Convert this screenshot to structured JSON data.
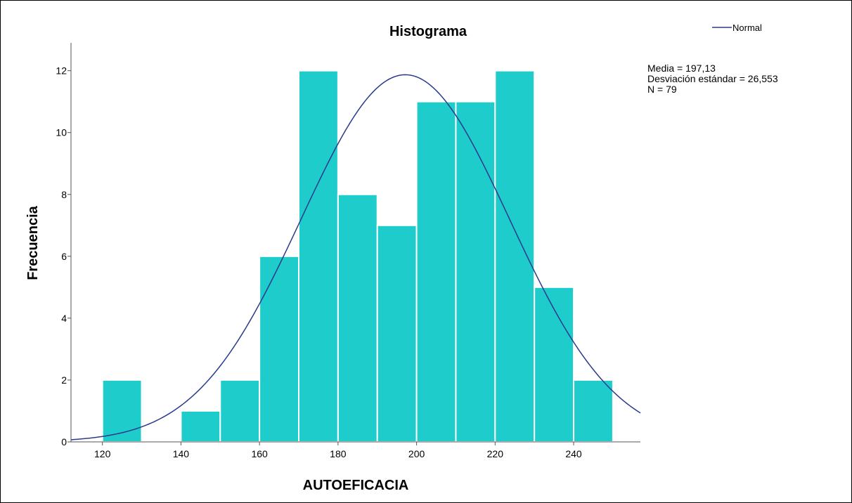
{
  "chart_data": {
    "type": "bar",
    "title": "Histograma",
    "xlabel": "AUTOEFICACIA",
    "ylabel": "Frecuencia",
    "xlim": [
      112,
      257
    ],
    "ylim": [
      0,
      12.9
    ],
    "x_ticks": [
      120,
      140,
      160,
      180,
      200,
      220,
      240
    ],
    "y_ticks": [
      0,
      2,
      4,
      6,
      8,
      10,
      12
    ],
    "bin_width": 10,
    "bins": [
      {
        "start": 120,
        "end": 130,
        "count": 2
      },
      {
        "start": 130,
        "end": 140,
        "count": 0
      },
      {
        "start": 140,
        "end": 150,
        "count": 1
      },
      {
        "start": 150,
        "end": 160,
        "count": 2
      },
      {
        "start": 160,
        "end": 170,
        "count": 6
      },
      {
        "start": 170,
        "end": 180,
        "count": 12
      },
      {
        "start": 180,
        "end": 190,
        "count": 8
      },
      {
        "start": 190,
        "end": 200,
        "count": 7
      },
      {
        "start": 200,
        "end": 210,
        "count": 11
      },
      {
        "start": 210,
        "end": 220,
        "count": 11
      },
      {
        "start": 220,
        "end": 230,
        "count": 12
      },
      {
        "start": 230,
        "end": 240,
        "count": 5
      },
      {
        "start": 240,
        "end": 250,
        "count": 2
      }
    ],
    "normal_curve": {
      "name": "Normal",
      "mean": 197.13,
      "sd": 26.553,
      "n": 79
    },
    "stats_lines": [
      "Media = 197,13",
      "Desviación estándar = 26,553",
      "N = 79"
    ],
    "legend": {
      "label": "Normal",
      "placement": "top-right"
    },
    "grid": false,
    "colors": {
      "bar_fill": "#1fcccc",
      "bar_edge": "#ffffff",
      "curve": "#2b3a8c",
      "axis": "#555555"
    }
  }
}
